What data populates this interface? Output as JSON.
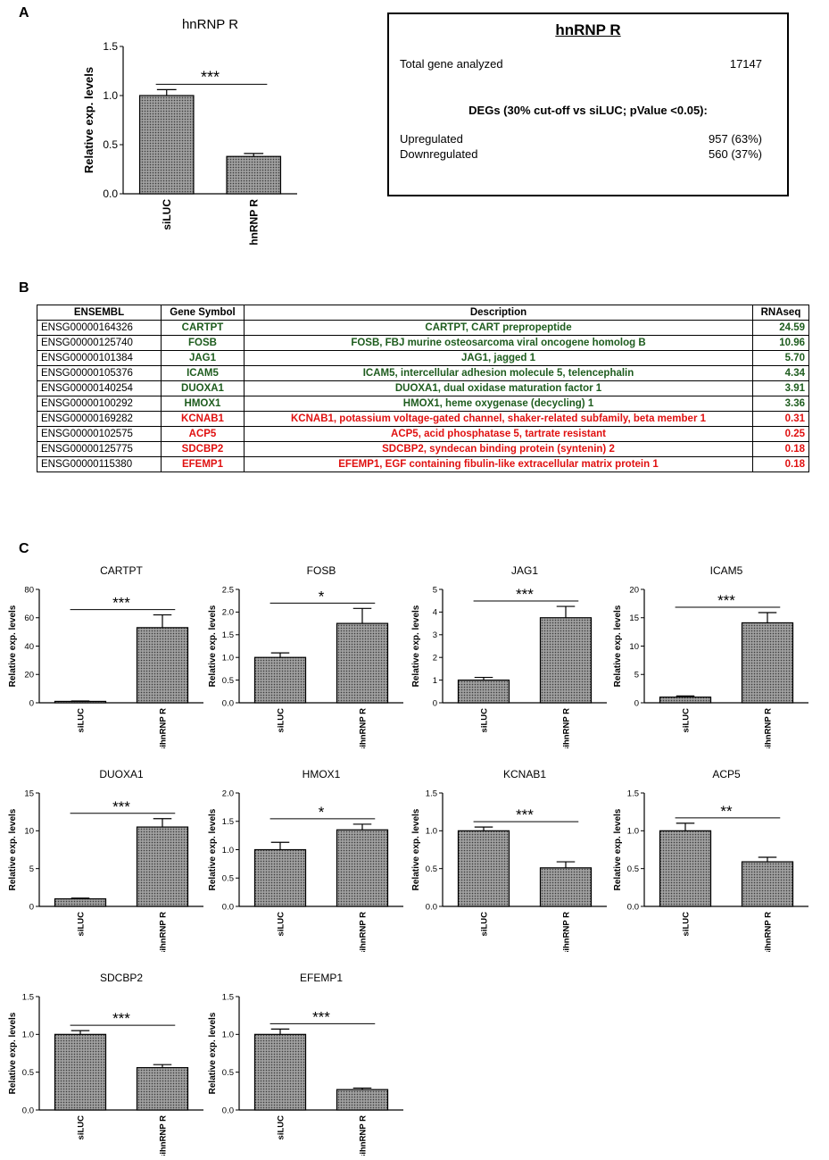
{
  "panels": {
    "a": "A",
    "b": "B",
    "c": "C"
  },
  "info_box": {
    "title": "hnRNP R",
    "total_label": "Total gene analyzed",
    "total_value": "17147",
    "degs_label": "DEGs (30% cut-off vs siLUC; pValue <0.05):",
    "up_label": "Upregulated",
    "up_value": "957 (63%)",
    "down_label": "Downregulated",
    "down_value": "560 (37%)"
  },
  "table": {
    "headers": [
      "ENSEMBL",
      "Gene Symbol",
      "Description",
      "RNAseq"
    ],
    "rows": [
      {
        "ensembl": "ENSG00000164326",
        "symbol": "CARTPT",
        "desc": "CARTPT, CART prepropeptide",
        "rnaseq": "24.59",
        "status": "up"
      },
      {
        "ensembl": "ENSG00000125740",
        "symbol": "FOSB",
        "desc": "FOSB, FBJ murine osteosarcoma viral oncogene homolog B",
        "rnaseq": "10.96",
        "status": "up"
      },
      {
        "ensembl": "ENSG00000101384",
        "symbol": "JAG1",
        "desc": "JAG1, jagged 1",
        "rnaseq": "5.70",
        "status": "up"
      },
      {
        "ensembl": "ENSG00000105376",
        "symbol": "ICAM5",
        "desc": "ICAM5, intercellular adhesion molecule 5, telencephalin",
        "rnaseq": "4.34",
        "status": "up"
      },
      {
        "ensembl": "ENSG00000140254",
        "symbol": "DUOXA1",
        "desc": "DUOXA1, dual oxidase maturation factor 1",
        "rnaseq": "3.91",
        "status": "up"
      },
      {
        "ensembl": "ENSG00000100292",
        "symbol": "HMOX1",
        "desc": "HMOX1, heme oxygenase (decycling) 1",
        "rnaseq": "3.36",
        "status": "up"
      },
      {
        "ensembl": "ENSG00000169282",
        "symbol": "KCNAB1",
        "desc": "KCNAB1, potassium voltage-gated channel, shaker-related subfamily, beta member 1",
        "rnaseq": "0.31",
        "status": "down"
      },
      {
        "ensembl": "ENSG00000102575",
        "symbol": "ACP5",
        "desc": "ACP5, acid phosphatase 5, tartrate resistant",
        "rnaseq": "0.25",
        "status": "down"
      },
      {
        "ensembl": "ENSG00000125775",
        "symbol": "SDCBP2",
        "desc": "SDCBP2, syndecan binding protein (syntenin) 2",
        "rnaseq": "0.18",
        "status": "down"
      },
      {
        "ensembl": "ENSG00000115380",
        "symbol": "EFEMP1",
        "desc": "EFEMP1, EGF containing fibulin-like extracellular matrix protein 1",
        "rnaseq": "0.18",
        "status": "down"
      }
    ]
  },
  "colors": {
    "up": "#1e5c1e",
    "down": "#e01010",
    "bar_fill": "#8c8c8c"
  },
  "chart_data": [
    {
      "type": "bar",
      "title": "hnRNP R",
      "categories": [
        "siLUC",
        "sihnRNP R"
      ],
      "values": [
        1.0,
        0.38
      ],
      "errors": [
        0.06,
        0.03
      ],
      "ylabel": "Relative exp. levels",
      "ylim": [
        0,
        1.5
      ],
      "yticks": [
        "0.0",
        "0.5",
        "1.0",
        "1.5"
      ],
      "significance": "***"
    },
    {
      "type": "bar",
      "title": "CARTPT",
      "categories": [
        "siLUC",
        "sihnRNP R"
      ],
      "values": [
        1.0,
        53
      ],
      "errors": [
        0.3,
        9
      ],
      "ylabel": "Relative exp. levels",
      "ylim": [
        0,
        80
      ],
      "yticks": [
        "0",
        "20",
        "40",
        "60",
        "80"
      ],
      "significance": "***"
    },
    {
      "type": "bar",
      "title": "FOSB",
      "categories": [
        "siLUC",
        "sihnRNP R"
      ],
      "values": [
        1.0,
        1.75
      ],
      "errors": [
        0.1,
        0.33
      ],
      "ylabel": "Relative exp. levels",
      "ylim": [
        0,
        2.5
      ],
      "yticks": [
        "0.0",
        "0.5",
        "1.0",
        "1.5",
        "2.0",
        "2.5"
      ],
      "significance": "*"
    },
    {
      "type": "bar",
      "title": "JAG1",
      "categories": [
        "siLUC",
        "sihnRNP R"
      ],
      "values": [
        1.0,
        3.75
      ],
      "errors": [
        0.12,
        0.5
      ],
      "ylabel": "Relative exp. levels",
      "ylim": [
        0,
        5
      ],
      "yticks": [
        "0",
        "1",
        "2",
        "3",
        "4",
        "5"
      ],
      "significance": "***"
    },
    {
      "type": "bar",
      "title": "ICAM5",
      "categories": [
        "siLUC",
        "sihnRNP R"
      ],
      "values": [
        1.0,
        14.1
      ],
      "errors": [
        0.2,
        1.8
      ],
      "ylabel": "Relative exp. levels",
      "ylim": [
        0,
        20
      ],
      "yticks": [
        "0",
        "5",
        "10",
        "15",
        "20"
      ],
      "significance": "***"
    },
    {
      "type": "bar",
      "title": "DUOXA1",
      "categories": [
        "siLUC",
        "sihnRNP R"
      ],
      "values": [
        1.0,
        10.5
      ],
      "errors": [
        0.1,
        1.1
      ],
      "ylabel": "Relative exp. levels",
      "ylim": [
        0,
        15
      ],
      "yticks": [
        "0",
        "5",
        "10",
        "15"
      ],
      "significance": "***"
    },
    {
      "type": "bar",
      "title": "HMOX1",
      "categories": [
        "siLUC",
        "sihnRNP R"
      ],
      "values": [
        1.0,
        1.35
      ],
      "errors": [
        0.13,
        0.1
      ],
      "ylabel": "Relative exp. levels",
      "ylim": [
        0,
        2.0
      ],
      "yticks": [
        "0.0",
        "0.5",
        "1.0",
        "1.5",
        "2.0"
      ],
      "significance": "*"
    },
    {
      "type": "bar",
      "title": "KCNAB1",
      "categories": [
        "siLUC",
        "sihnRNP R"
      ],
      "values": [
        1.0,
        0.51
      ],
      "errors": [
        0.05,
        0.08
      ],
      "ylabel": "Relative exp. levels",
      "ylim": [
        0,
        1.5
      ],
      "yticks": [
        "0.0",
        "0.5",
        "1.0",
        "1.5"
      ],
      "significance": "***"
    },
    {
      "type": "bar",
      "title": "ACP5",
      "categories": [
        "siLUC",
        "sihnRNP R"
      ],
      "values": [
        1.0,
        0.59
      ],
      "errors": [
        0.1,
        0.06
      ],
      "ylabel": "Relative exp. levels",
      "ylim": [
        0,
        1.5
      ],
      "yticks": [
        "0.0",
        "0.5",
        "1.0",
        "1.5"
      ],
      "significance": "**"
    },
    {
      "type": "bar",
      "title": "SDCBP2",
      "categories": [
        "siLUC",
        "sihnRNP R"
      ],
      "values": [
        1.0,
        0.56
      ],
      "errors": [
        0.05,
        0.04
      ],
      "ylabel": "Relative exp. levels",
      "ylim": [
        0,
        1.5
      ],
      "yticks": [
        "0.0",
        "0.5",
        "1.0",
        "1.5"
      ],
      "significance": "***"
    },
    {
      "type": "bar",
      "title": "EFEMP1",
      "categories": [
        "siLUC",
        "sihnRNP R"
      ],
      "values": [
        1.0,
        0.27
      ],
      "errors": [
        0.07,
        0.02
      ],
      "ylabel": "Relative exp. levels",
      "ylim": [
        0,
        1.5
      ],
      "yticks": [
        "0.0",
        "0.5",
        "1.0",
        "1.5"
      ],
      "significance": "***"
    }
  ]
}
